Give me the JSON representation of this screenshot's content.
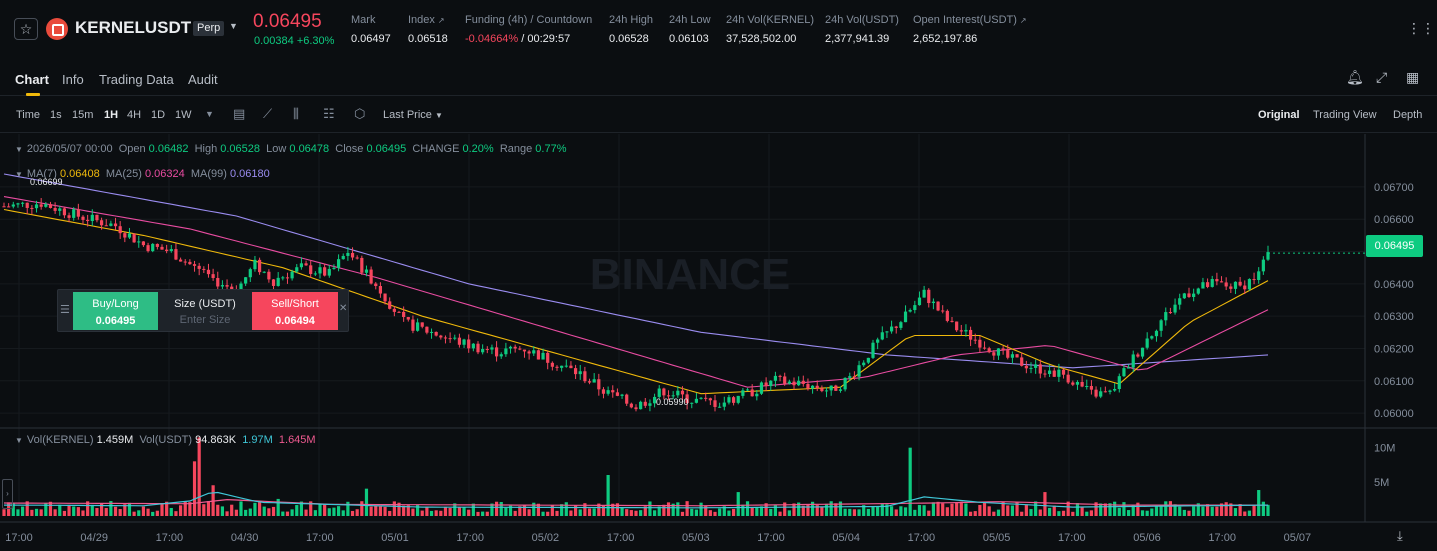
{
  "header": {
    "symbol": "KERNELUSDT",
    "contract_type": "Perp",
    "last_price": "0.06495",
    "change": "0.00384 +6.30%",
    "stats": [
      {
        "label": "Mark",
        "value": "0.06497"
      },
      {
        "label": "Index",
        "value": "0.06518"
      },
      {
        "label": "Funding (4h) / Countdown",
        "value": "-0.04664%",
        "value2": " / 00:29:57"
      },
      {
        "label": "24h High",
        "value": "0.06528"
      },
      {
        "label": "24h Low",
        "value": "0.06103"
      },
      {
        "label": "24h Vol(KERNEL)",
        "value": "37,528,502.00"
      },
      {
        "label": "24h Vol(USDT)",
        "value": "2,377,941.39"
      },
      {
        "label": "Open Interest(USDT)",
        "value": "2,652,197.86"
      }
    ]
  },
  "tabs": [
    "Chart",
    "Info",
    "Trading Data",
    "Audit"
  ],
  "toolbar": {
    "time_label": "Time",
    "intervals": [
      "1s",
      "15m",
      "1H",
      "4H",
      "1D",
      "1W"
    ],
    "active_interval": "1H",
    "price_type": "Last Price",
    "views": [
      "Original",
      "Trading View",
      "Depth"
    ]
  },
  "legend": {
    "date": "2026/05/07 00:00",
    "open_label": "Open",
    "open": "0.06482",
    "high_label": "High",
    "high": "0.06528",
    "low_label": "Low",
    "low": "0.06478",
    "close_label": "Close",
    "close": "0.06495",
    "change_label": "CHANGE",
    "change": "0.20%",
    "range_label": "Range",
    "range": "0.77%",
    "ma7_label": "MA(7)",
    "ma7": "0.06408",
    "ma25_label": "MA(25)",
    "ma25": "0.06324",
    "ma99_label": "MA(99)",
    "ma99": "0.06180"
  },
  "vol_legend": {
    "vol_kernel_label": "Vol(KERNEL)",
    "vol_kernel": "1.459M",
    "vol_usdt_label": "Vol(USDT)",
    "vol_usdt": "94.863K",
    "ma1": "1.97M",
    "ma2": "1.645M"
  },
  "chart_labels": {
    "high_marker": "0.06699",
    "low_marker": "0.05990",
    "current_price": "0.06495",
    "watermark": "BINANCE"
  },
  "quick_order": {
    "buy_label": "Buy/Long",
    "buy_price": "0.06495",
    "size_label": "Size (USDT)",
    "size_placeholder": "Enter Size",
    "sell_label": "Sell/Short",
    "sell_price": "0.06494"
  },
  "colors": {
    "up": "#0ecb81",
    "down": "#f6465d",
    "ma7": "#f0b90b",
    "ma25": "#e84ca1",
    "ma99": "#9a8cf0",
    "accent": "#f0b90b"
  },
  "chart_data": {
    "type": "candlestick",
    "interval": "1H",
    "y_ticks": [
      "0.06700",
      "0.06600",
      "0.06500",
      "0.06400",
      "0.06300",
      "0.06200",
      "0.06100",
      "0.06000"
    ],
    "ylim": [
      0.0596,
      0.0674
    ],
    "x_ticks": [
      "17:00",
      "04/29",
      "17:00",
      "04/30",
      "17:00",
      "05/01",
      "17:00",
      "05/02",
      "17:00",
      "05/03",
      "17:00",
      "05/04",
      "17:00",
      "05/05",
      "17:00",
      "05/06",
      "17:00",
      "05/07"
    ],
    "volume_ticks": [
      "10M",
      "5M"
    ],
    "volume_max": 12000000,
    "price_path": [
      [
        0,
        0.0664
      ],
      [
        8,
        0.0665
      ],
      [
        16,
        0.0661
      ],
      [
        24,
        0.0658
      ],
      [
        30,
        0.0652
      ],
      [
        36,
        0.065
      ],
      [
        44,
        0.0642
      ],
      [
        50,
        0.0638
      ],
      [
        54,
        0.0646
      ],
      [
        58,
        0.0641
      ],
      [
        64,
        0.0645
      ],
      [
        70,
        0.0643
      ],
      [
        74,
        0.065
      ],
      [
        80,
        0.064
      ],
      [
        86,
        0.0628
      ],
      [
        92,
        0.0625
      ],
      [
        100,
        0.0621
      ],
      [
        106,
        0.0619
      ],
      [
        112,
        0.062
      ],
      [
        118,
        0.0616
      ],
      [
        124,
        0.0612
      ],
      [
        130,
        0.0606
      ],
      [
        136,
        0.0602
      ],
      [
        142,
        0.0607
      ],
      [
        148,
        0.0604
      ],
      [
        154,
        0.0603
      ],
      [
        160,
        0.0606
      ],
      [
        166,
        0.061
      ],
      [
        172,
        0.0609
      ],
      [
        178,
        0.0607
      ],
      [
        182,
        0.0611
      ],
      [
        188,
        0.0622
      ],
      [
        194,
        0.063
      ],
      [
        198,
        0.0637
      ],
      [
        204,
        0.0627
      ],
      [
        210,
        0.0622
      ],
      [
        216,
        0.0617
      ],
      [
        222,
        0.0614
      ],
      [
        228,
        0.0612
      ],
      [
        234,
        0.0606
      ],
      [
        238,
        0.0606
      ],
      [
        242,
        0.0615
      ],
      [
        248,
        0.0627
      ],
      [
        254,
        0.0637
      ],
      [
        260,
        0.064
      ],
      [
        266,
        0.0639
      ],
      [
        270,
        0.0643
      ],
      [
        272,
        0.0649
      ]
    ],
    "volume_spikes": {
      "41": 8000000,
      "42": 11500000,
      "45": 4500000,
      "59": 2500000,
      "78": 4000000,
      "130": 6000000,
      "158": 3500000,
      "195": 10000000,
      "224": 3500000,
      "270": 3800000
    },
    "ma7": [
      [
        0,
        0.0663
      ],
      [
        30,
        0.0655
      ],
      [
        60,
        0.0645
      ],
      [
        90,
        0.063
      ],
      [
        120,
        0.0618
      ],
      [
        150,
        0.0606
      ],
      [
        180,
        0.0608
      ],
      [
        195,
        0.0624
      ],
      [
        210,
        0.0624
      ],
      [
        225,
        0.0615
      ],
      [
        240,
        0.0609
      ],
      [
        255,
        0.0628
      ],
      [
        272,
        0.0641
      ]
    ],
    "ma25": [
      [
        0,
        0.0667
      ],
      [
        40,
        0.0657
      ],
      [
        80,
        0.0642
      ],
      [
        120,
        0.0625
      ],
      [
        160,
        0.0608
      ],
      [
        185,
        0.0611
      ],
      [
        205,
        0.0618
      ],
      [
        225,
        0.0621
      ],
      [
        245,
        0.0613
      ],
      [
        272,
        0.0632
      ]
    ],
    "ma99": [
      [
        0,
        0.0674
      ],
      [
        50,
        0.0661
      ],
      [
        100,
        0.064
      ],
      [
        150,
        0.0625
      ],
      [
        190,
        0.0618
      ],
      [
        230,
        0.0614
      ],
      [
        272,
        0.0618
      ]
    ]
  }
}
